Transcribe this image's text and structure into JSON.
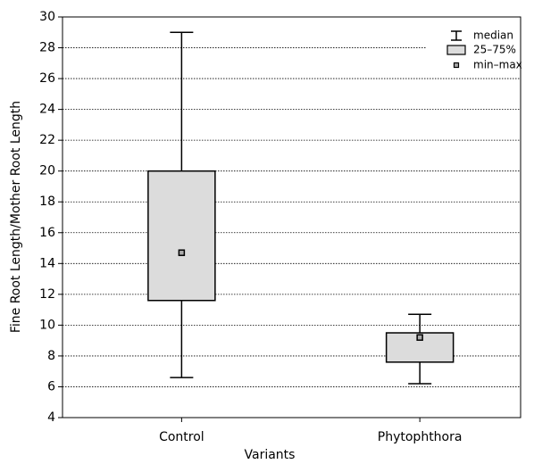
{
  "chart_data": {
    "type": "box",
    "ylabel": "Fine Root Length/Mother Root Length",
    "xlabel": "Variants",
    "categories": [
      "Control",
      "Phytophthora"
    ],
    "boxes": [
      {
        "low": 6.6,
        "q1": 11.6,
        "mid": 14.7,
        "q3": 20.0,
        "high": 29
      },
      {
        "low": 6.2,
        "q1": 7.6,
        "mid": 9.2,
        "q3": 9.5,
        "high": 10.7
      }
    ],
    "color": "#dcdcdc",
    "legend": [
      "median",
      "25–75%",
      "min–max"
    ],
    "ylim": [
      4,
      30
    ],
    "yticks": [
      4,
      6,
      8,
      10,
      12,
      14,
      16,
      18,
      20,
      22,
      24,
      26,
      28,
      30
    ],
    "grid": true
  }
}
